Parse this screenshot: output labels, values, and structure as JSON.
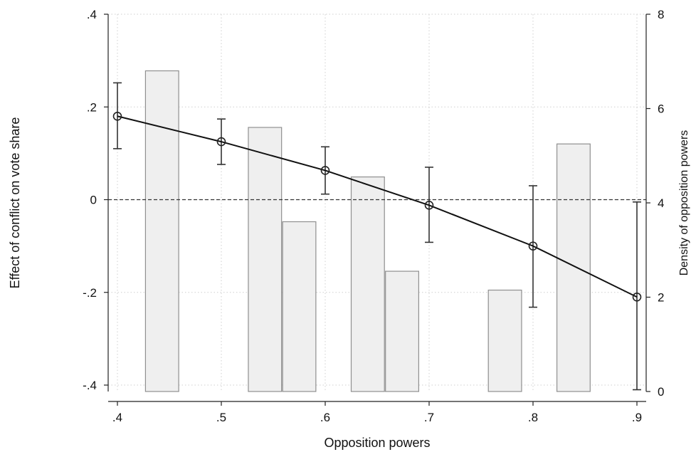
{
  "chart_data": {
    "type": "line",
    "title": "",
    "xlabel": "Opposition powers",
    "ylabel": "Effect of conflict on vote share",
    "y2label": "Density of opposition powers",
    "xlim": [
      0.4,
      0.9
    ],
    "ylim": [
      -0.4,
      0.4
    ],
    "y2lim": [
      0,
      8
    ],
    "grid": true,
    "x_ticks": [
      ".4",
      ".5",
      ".6",
      ".7",
      ".8",
      ".9"
    ],
    "x_tick_values": [
      0.4,
      0.5,
      0.6,
      0.7,
      0.8,
      0.9
    ],
    "y_ticks": [
      ".4",
      ".2",
      "0",
      "-.2",
      "-.4"
    ],
    "y_tick_values": [
      0.4,
      0.2,
      0,
      -0.2,
      -0.4
    ],
    "y2_ticks": [
      "8",
      "6",
      "4",
      "2",
      "0"
    ],
    "y2_tick_values": [
      8,
      6,
      4,
      2,
      0
    ],
    "zero_reference_line": 0,
    "effect_series": {
      "x": [
        0.4,
        0.5,
        0.6,
        0.7,
        0.8,
        0.9
      ],
      "y": [
        0.18,
        0.125,
        0.063,
        -0.012,
        -0.1,
        -0.21
      ],
      "ci_lower": [
        0.11,
        0.076,
        0.012,
        -0.092,
        -0.232,
        -0.41
      ],
      "ci_upper": [
        0.252,
        0.174,
        0.114,
        0.07,
        0.03,
        -0.005
      ]
    },
    "density_histogram": {
      "bins": [
        {
          "x0": 0.427,
          "x1": 0.459,
          "density": 6.8
        },
        {
          "x0": 0.526,
          "x1": 0.558,
          "density": 5.6
        },
        {
          "x0": 0.559,
          "x1": 0.591,
          "density": 3.6
        },
        {
          "x0": 0.625,
          "x1": 0.657,
          "density": 4.55
        },
        {
          "x0": 0.658,
          "x1": 0.69,
          "density": 2.55
        },
        {
          "x0": 0.757,
          "x1": 0.789,
          "density": 2.15
        },
        {
          "x0": 0.823,
          "x1": 0.855,
          "density": 5.25
        }
      ]
    }
  }
}
